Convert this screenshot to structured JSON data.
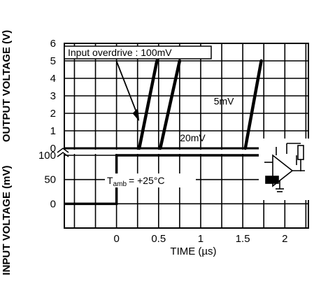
{
  "chart_data": {
    "type": "line",
    "xlabel": "TIME (µs)",
    "x_ticks": [
      "0",
      "0.5",
      "1",
      "1.5",
      "2"
    ],
    "xlim": [
      -0.62,
      2.28
    ],
    "output_axis": {
      "ylabel": "OUTPUT VOLTAGE (V)",
      "ticks": [
        "6",
        "5",
        "4",
        "3",
        "2",
        "1",
        "0"
      ],
      "ylim": [
        0,
        6
      ]
    },
    "input_axis": {
      "ylabel": "INPUT VOLTAGE (mV)",
      "ticks": [
        "100",
        "50",
        "0"
      ],
      "ylim": [
        -50,
        100
      ]
    },
    "annotation_header": "Input overdrive : 100mV",
    "temperature_label": "T",
    "temperature_subscript": "amb",
    "temperature_value": "= +25°C",
    "series": [
      {
        "name": "100mV",
        "x": [
          0.27,
          0.48
        ],
        "y": [
          0,
          5
        ]
      },
      {
        "name": "20mV",
        "x": [
          0.52,
          0.75
        ],
        "y": [
          0,
          5
        ]
      },
      {
        "name": "5mV",
        "x": [
          1.53,
          1.72
        ],
        "y": [
          0,
          5
        ]
      }
    ],
    "input_step": {
      "x": [
        -0.62,
        0,
        0,
        2.28
      ],
      "y": [
        0,
        0,
        100,
        100
      ]
    },
    "grid": true
  }
}
